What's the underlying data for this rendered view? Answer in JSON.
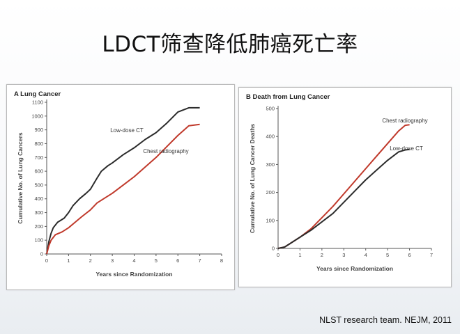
{
  "slide": {
    "title": "LDCT筛查降低肺癌死亡率",
    "citation": "NLST research team. NEJM, 2011"
  },
  "colors": {
    "ldct": "#2b2b2b",
    "cxr": "#c0392b"
  },
  "chart_data": [
    {
      "type": "line",
      "panel_label": "A",
      "title": "Lung Cancer",
      "xlabel": "Years since Randomization",
      "ylabel": "Cumulative No. of Lung Cancers",
      "xlim": [
        0,
        8
      ],
      "ylim": [
        0,
        1100
      ],
      "xticks": [
        0,
        1,
        2,
        3,
        4,
        5,
        6,
        7,
        8
      ],
      "yticks": [
        0,
        100,
        200,
        300,
        400,
        500,
        600,
        700,
        800,
        900,
        1000,
        1100
      ],
      "series": [
        {
          "name": "Low-dose CT",
          "color_key": "ldct",
          "x": [
            0,
            0.1,
            0.2,
            0.3,
            0.5,
            0.8,
            1.0,
            1.2,
            1.5,
            1.8,
            2.0,
            2.3,
            2.5,
            2.8,
            3.0,
            3.5,
            4.0,
            4.5,
            5.0,
            5.5,
            6.0,
            6.5,
            7.0
          ],
          "y": [
            0,
            90,
            150,
            190,
            230,
            260,
            300,
            350,
            400,
            440,
            470,
            550,
            600,
            640,
            660,
            720,
            770,
            830,
            880,
            950,
            1030,
            1060,
            1060
          ]
        },
        {
          "name": "Chest radiography",
          "color_key": "cxr",
          "x": [
            0,
            0.1,
            0.2,
            0.4,
            0.7,
            1.0,
            1.3,
            1.6,
            2.0,
            2.3,
            2.6,
            3.0,
            3.5,
            4.0,
            4.5,
            5.0,
            5.5,
            6.0,
            6.5,
            7.0
          ],
          "y": [
            0,
            60,
            100,
            140,
            160,
            190,
            230,
            270,
            320,
            370,
            400,
            440,
            500,
            560,
            630,
            700,
            780,
            860,
            930,
            940
          ]
        }
      ]
    },
    {
      "type": "line",
      "panel_label": "B",
      "title": "Death from Lung Cancer",
      "xlabel": "Years since Randomization",
      "ylabel": "Cumulative No. of Lung Cancer Deaths",
      "xlim": [
        0,
        7
      ],
      "ylim": [
        0,
        500
      ],
      "xticks": [
        0,
        1,
        2,
        3,
        4,
        5,
        6,
        7
      ],
      "yticks": [
        0,
        100,
        200,
        300,
        400,
        500
      ],
      "series": [
        {
          "name": "Chest radiography",
          "color_key": "cxr",
          "x": [
            0,
            0.3,
            0.5,
            1.0,
            1.5,
            2.0,
            2.5,
            3.0,
            3.5,
            4.0,
            4.5,
            5.0,
            5.5,
            5.8,
            6.0
          ],
          "y": [
            0,
            5,
            15,
            40,
            70,
            110,
            150,
            195,
            240,
            285,
            330,
            375,
            420,
            440,
            442
          ]
        },
        {
          "name": "Low-dose CT",
          "color_key": "ldct",
          "x": [
            0,
            0.3,
            0.5,
            1.0,
            1.5,
            2.0,
            2.5,
            3.0,
            3.5,
            4.0,
            4.5,
            5.0,
            5.5,
            5.8,
            6.0
          ],
          "y": [
            0,
            5,
            15,
            40,
            65,
            95,
            125,
            165,
            205,
            245,
            280,
            315,
            345,
            352,
            354
          ]
        }
      ]
    }
  ]
}
